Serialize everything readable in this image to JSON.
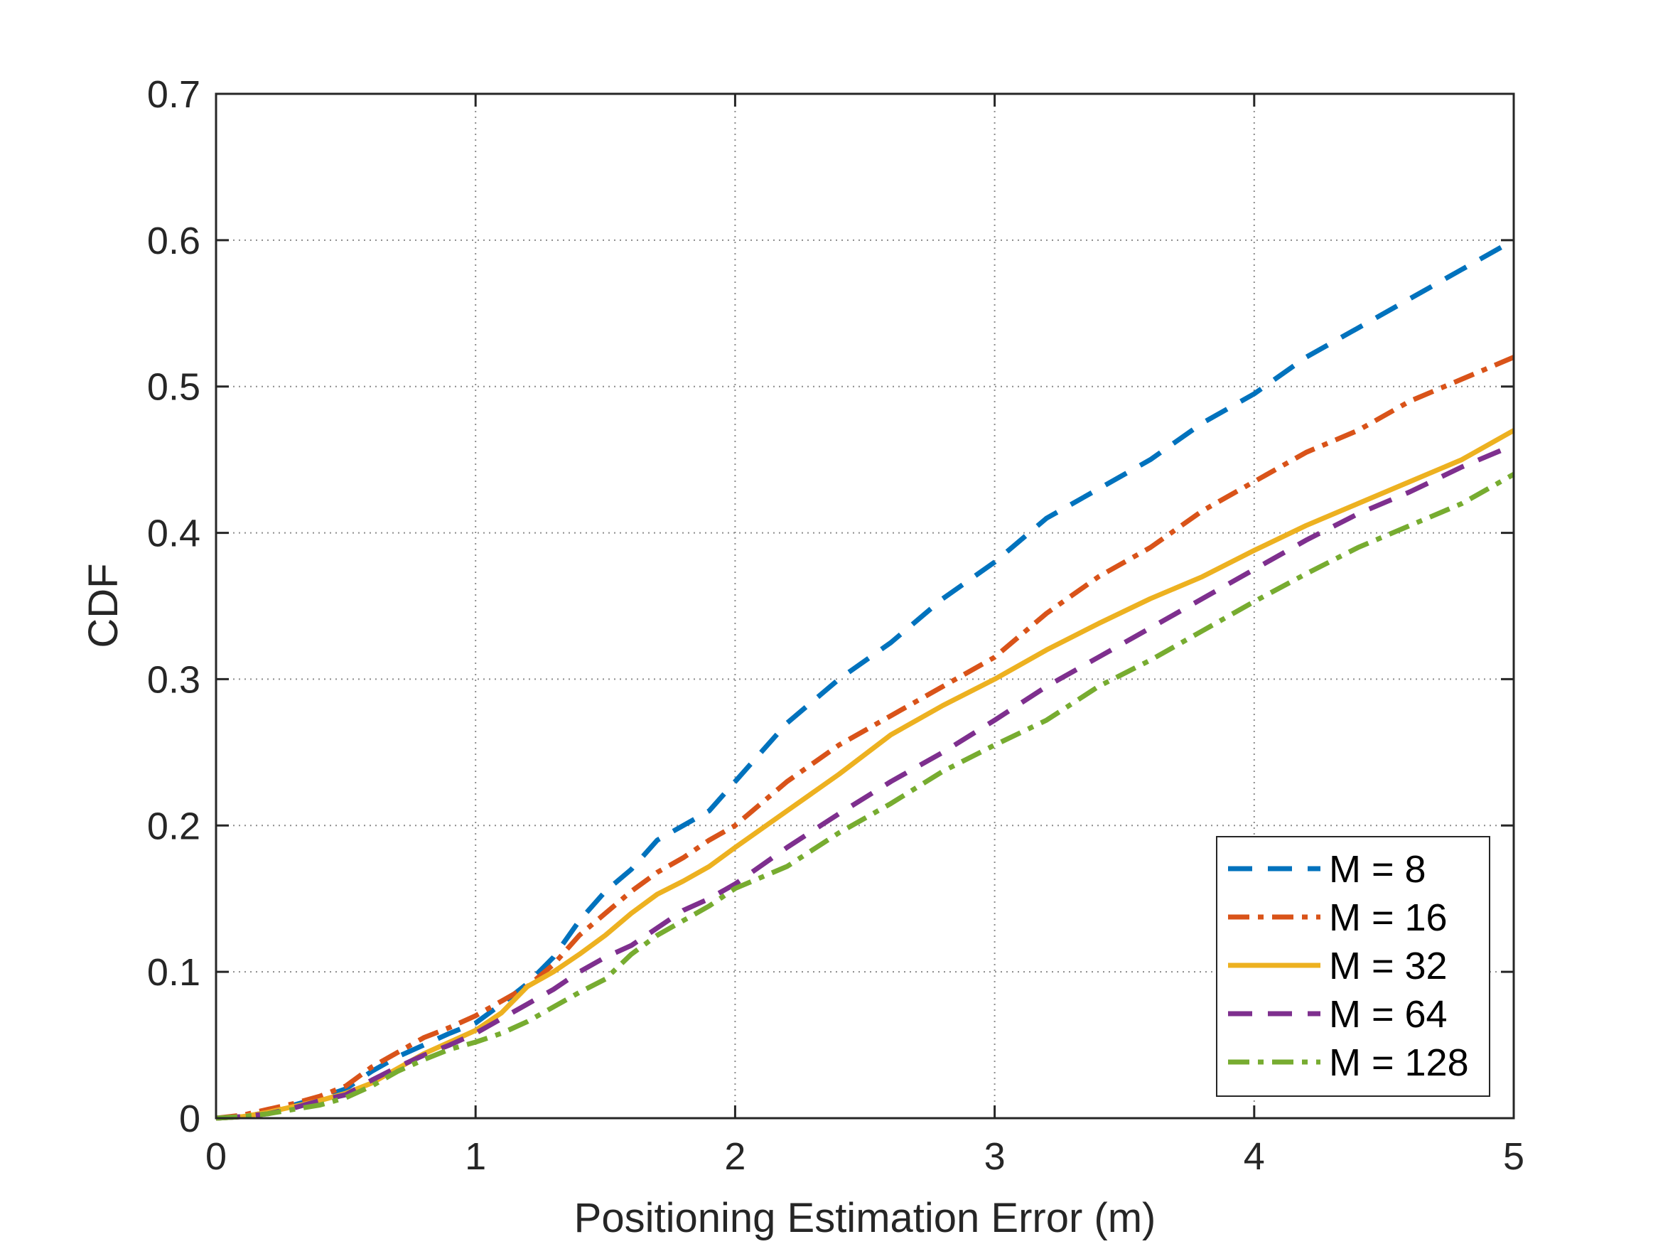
{
  "chart_data": {
    "type": "line",
    "title": "",
    "xlabel": "Positioning Estimation Error (m)",
    "ylabel": "CDF",
    "xlim": [
      0,
      5
    ],
    "ylim": [
      0,
      0.7
    ],
    "xticks": [
      0,
      1,
      2,
      3,
      4,
      5
    ],
    "yticks": [
      0,
      0.1,
      0.2,
      0.3,
      0.4,
      0.5,
      0.6,
      0.7
    ],
    "xtick_labels": [
      "0",
      "1",
      "2",
      "3",
      "4",
      "5"
    ],
    "ytick_labels": [
      "0",
      "0.1",
      "0.2",
      "0.3",
      "0.4",
      "0.5",
      "0.6",
      "0.7"
    ],
    "grid": true,
    "legend_position": "bottom-right",
    "series": [
      {
        "name": "M = 8",
        "color": "#0072BD",
        "style": "dashed",
        "x": [
          0,
          0.1,
          0.2,
          0.3,
          0.4,
          0.5,
          0.6,
          0.7,
          0.8,
          0.9,
          1.0,
          1.1,
          1.2,
          1.3,
          1.4,
          1.5,
          1.6,
          1.7,
          1.8,
          1.9,
          2.0,
          2.2,
          2.4,
          2.6,
          2.8,
          3.0,
          3.2,
          3.4,
          3.6,
          3.8,
          4.0,
          4.2,
          4.4,
          4.6,
          4.8,
          5.0
        ],
        "y": [
          0,
          0.001,
          0.004,
          0.009,
          0.014,
          0.02,
          0.032,
          0.042,
          0.05,
          0.058,
          0.065,
          0.078,
          0.092,
          0.11,
          0.135,
          0.155,
          0.17,
          0.19,
          0.2,
          0.21,
          0.23,
          0.27,
          0.3,
          0.325,
          0.355,
          0.38,
          0.41,
          0.43,
          0.45,
          0.475,
          0.495,
          0.52,
          0.54,
          0.56,
          0.58,
          0.6
        ]
      },
      {
        "name": "M = 16",
        "color": "#D95319",
        "style": "dash-dot",
        "x": [
          0,
          0.1,
          0.2,
          0.3,
          0.4,
          0.5,
          0.6,
          0.7,
          0.8,
          0.9,
          1.0,
          1.1,
          1.2,
          1.3,
          1.4,
          1.5,
          1.6,
          1.7,
          1.8,
          1.9,
          2.0,
          2.2,
          2.4,
          2.6,
          2.8,
          3.0,
          3.2,
          3.4,
          3.6,
          3.8,
          4.0,
          4.2,
          4.4,
          4.6,
          4.8,
          5.0
        ],
        "y": [
          0,
          0.002,
          0.006,
          0.01,
          0.015,
          0.022,
          0.035,
          0.045,
          0.055,
          0.062,
          0.07,
          0.08,
          0.09,
          0.105,
          0.125,
          0.14,
          0.155,
          0.168,
          0.178,
          0.19,
          0.2,
          0.23,
          0.255,
          0.275,
          0.295,
          0.315,
          0.345,
          0.37,
          0.39,
          0.415,
          0.435,
          0.455,
          0.47,
          0.49,
          0.505,
          0.52
        ]
      },
      {
        "name": "M = 32",
        "color": "#EDB120",
        "style": "solid",
        "x": [
          0,
          0.1,
          0.2,
          0.3,
          0.4,
          0.5,
          0.6,
          0.7,
          0.8,
          0.9,
          1.0,
          1.1,
          1.2,
          1.3,
          1.4,
          1.5,
          1.6,
          1.7,
          1.8,
          1.9,
          2.0,
          2.2,
          2.4,
          2.6,
          2.8,
          3.0,
          3.2,
          3.4,
          3.6,
          3.8,
          4.0,
          4.2,
          4.4,
          4.6,
          4.8,
          5.0
        ],
        "y": [
          0,
          0.001,
          0.004,
          0.008,
          0.012,
          0.017,
          0.024,
          0.034,
          0.044,
          0.052,
          0.06,
          0.072,
          0.09,
          0.1,
          0.112,
          0.125,
          0.14,
          0.153,
          0.162,
          0.172,
          0.185,
          0.21,
          0.235,
          0.262,
          0.282,
          0.3,
          0.32,
          0.338,
          0.355,
          0.37,
          0.388,
          0.405,
          0.42,
          0.435,
          0.45,
          0.47
        ]
      },
      {
        "name": "M = 64",
        "color": "#7E2F8E",
        "style": "dashed",
        "x": [
          0,
          0.1,
          0.2,
          0.3,
          0.4,
          0.5,
          0.6,
          0.7,
          0.8,
          0.9,
          1.0,
          1.1,
          1.2,
          1.3,
          1.4,
          1.5,
          1.6,
          1.7,
          1.8,
          1.9,
          2.0,
          2.2,
          2.4,
          2.6,
          2.8,
          3.0,
          3.2,
          3.4,
          3.6,
          3.8,
          4.0,
          4.2,
          4.4,
          4.6,
          4.8,
          5.0
        ],
        "y": [
          0,
          0.001,
          0.003,
          0.007,
          0.012,
          0.016,
          0.026,
          0.035,
          0.043,
          0.05,
          0.058,
          0.068,
          0.078,
          0.088,
          0.1,
          0.11,
          0.118,
          0.13,
          0.142,
          0.15,
          0.16,
          0.185,
          0.208,
          0.23,
          0.25,
          0.272,
          0.295,
          0.315,
          0.335,
          0.355,
          0.375,
          0.395,
          0.413,
          0.428,
          0.445,
          0.46
        ]
      },
      {
        "name": "M = 128",
        "color": "#77AC30",
        "style": "dash-dot",
        "x": [
          0,
          0.1,
          0.2,
          0.3,
          0.4,
          0.5,
          0.6,
          0.7,
          0.8,
          0.9,
          1.0,
          1.1,
          1.2,
          1.3,
          1.4,
          1.5,
          1.6,
          1.7,
          1.8,
          1.9,
          2.0,
          2.2,
          2.4,
          2.6,
          2.8,
          3.0,
          3.2,
          3.4,
          3.6,
          3.8,
          4.0,
          4.2,
          4.4,
          4.6,
          4.8,
          5.0
        ],
        "y": [
          0,
          0.001,
          0.003,
          0.006,
          0.009,
          0.014,
          0.022,
          0.032,
          0.04,
          0.047,
          0.052,
          0.058,
          0.066,
          0.076,
          0.086,
          0.095,
          0.112,
          0.125,
          0.135,
          0.145,
          0.157,
          0.172,
          0.195,
          0.215,
          0.237,
          0.255,
          0.272,
          0.295,
          0.313,
          0.333,
          0.353,
          0.372,
          0.39,
          0.405,
          0.42,
          0.44
        ]
      }
    ]
  }
}
